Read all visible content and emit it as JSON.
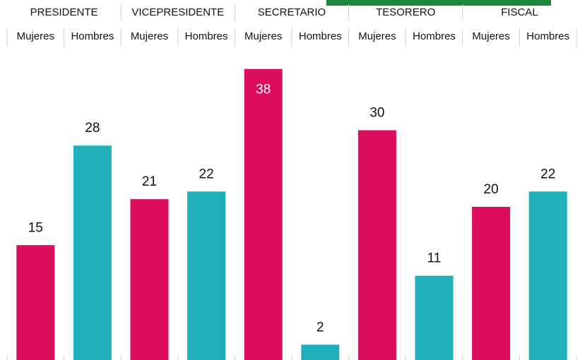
{
  "chart_data": {
    "type": "bar",
    "categories": [
      "PRESIDENTE",
      "VICEPRESIDENTE",
      "SECRETARIO",
      "TESORERO",
      "FISCAL"
    ],
    "series": [
      {
        "name": "Mujeres",
        "color": "#dc0d5c",
        "values": [
          15,
          21,
          38,
          30,
          20
        ]
      },
      {
        "name": "Hombres",
        "color": "#1fb0bb",
        "values": [
          28,
          22,
          2,
          11,
          22
        ]
      }
    ],
    "ylim": [
      0,
      40
    ]
  }
}
